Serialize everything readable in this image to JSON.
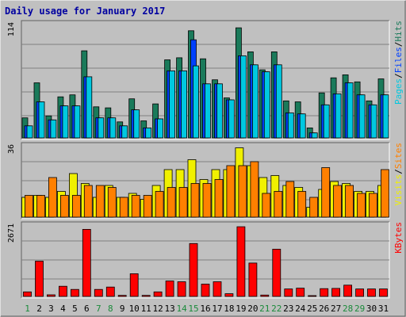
{
  "chart_data": {
    "type": "bar",
    "title": "Daily usage for January 2017",
    "categories": [
      "1",
      "2",
      "3",
      "4",
      "5",
      "6",
      "7",
      "8",
      "9",
      "10",
      "11",
      "12",
      "13",
      "14",
      "15",
      "16",
      "17",
      "18",
      "19",
      "20",
      "21",
      "22",
      "23",
      "24",
      "25",
      "26",
      "27",
      "28",
      "29",
      "30",
      "31"
    ],
    "weekend_days": [
      1,
      7,
      8,
      14,
      15,
      21,
      22,
      28,
      29
    ],
    "panels": [
      {
        "name": "pages-files-hits",
        "ytick": "114",
        "ymax": 114,
        "legend": [
          {
            "text": "Pages",
            "color": "#00c8e0"
          },
          {
            "text": "/",
            "color": "#000000"
          },
          {
            "text": "Files",
            "color": "#0040ff"
          },
          {
            "text": "/",
            "color": "#000000"
          },
          {
            "text": "Hits",
            "color": "#1a7a5a"
          }
        ],
        "series": [
          {
            "name": "Hits",
            "color": "#1a7a5a",
            "values": [
              20,
              55,
              22,
              41,
              43,
              87,
              31,
              30,
              16,
              39,
              17,
              34,
              78,
              80,
              107,
              79,
              58,
              40,
              110,
              86,
              68,
              86,
              37,
              36,
              10,
              45,
              60,
              63,
              56,
              37,
              59
            ]
          },
          {
            "name": "Files",
            "color": "#0040ff",
            "values": [
              12,
              36,
              18,
              32,
              32,
              61,
              20,
              20,
              12,
              28,
              10,
              19,
              67,
              67,
              98,
              54,
              54,
              38,
              82,
              73,
              66,
              73,
              25,
              24,
              5,
              33,
              44,
              55,
              43,
              33,
              43
            ]
          },
          {
            "name": "Pages",
            "color": "#00c8e0",
            "values": [
              12,
              36,
              18,
              32,
              32,
              61,
              20,
              20,
              12,
              28,
              10,
              19,
              67,
              67,
              72,
              54,
              54,
              38,
              82,
              73,
              66,
              73,
              25,
              24,
              5,
              33,
              44,
              55,
              43,
              33,
              43
            ]
          }
        ]
      },
      {
        "name": "visits-sites",
        "ytick": "36",
        "ymax": 36,
        "legend": [
          {
            "text": "Visits",
            "color": "#f0f000"
          },
          {
            "text": "/",
            "color": "#000000"
          },
          {
            "text": "Sites",
            "color": "#ff8000"
          }
        ],
        "series": [
          {
            "name": "Visits",
            "color": "#f0f000",
            "values": [
              10,
              11,
              10,
              13,
              22,
              17,
              10,
              16,
              10,
              12,
              9,
              16,
              24,
              24,
              29,
              19,
              24,
              24,
              35,
              26,
              20,
              21,
              16,
              15,
              5,
              14,
              18,
              17,
              13,
              13,
              16
            ]
          },
          {
            "name": "Sites",
            "color": "#ff8000",
            "values": [
              11,
              11,
              20,
              11,
              11,
              16,
              16,
              15,
              10,
              11,
              11,
              13,
              15,
              15,
              17,
              17,
              19,
              26,
              26,
              28,
              12,
              13,
              18,
              13,
              10,
              25,
              16,
              16,
              12,
              12,
              24
            ]
          }
        ]
      },
      {
        "name": "kbytes",
        "ytick": "2671",
        "ymax": 2671,
        "legend": [
          {
            "text": "KBytes",
            "color": "#ff0000"
          }
        ],
        "series": [
          {
            "name": "KBytes",
            "color": "#ff0000",
            "values": [
              170,
              1320,
              60,
              380,
              260,
              2510,
              260,
              350,
              40,
              850,
              40,
              170,
              580,
              550,
              1980,
              460,
              550,
              100,
              2610,
              1250,
              50,
              1770,
              280,
              310,
              30,
              290,
              300,
              420,
              280,
              280,
              280
            ]
          }
        ]
      }
    ]
  }
}
